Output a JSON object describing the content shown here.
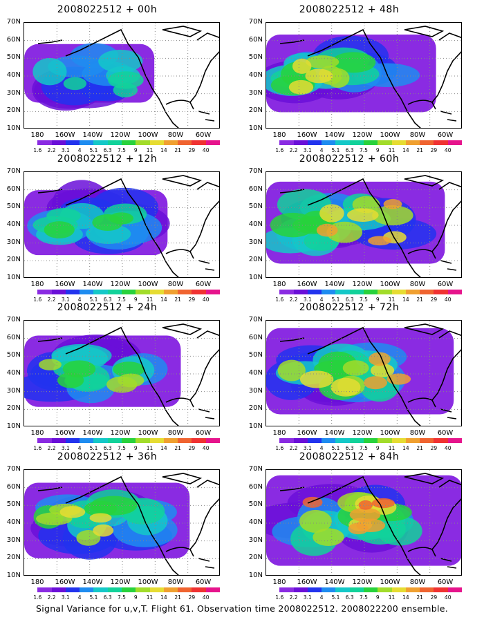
{
  "panels": [
    {
      "title": "2008022512 + 00h",
      "intensity": 0.25
    },
    {
      "title": "2008022512 + 48h",
      "intensity": 0.7
    },
    {
      "title": "2008022512 + 12h",
      "intensity": 0.4
    },
    {
      "title": "2008022512 + 60h",
      "intensity": 0.8
    },
    {
      "title": "2008022512 + 24h",
      "intensity": 0.55
    },
    {
      "title": "2008022512 + 72h",
      "intensity": 0.9
    },
    {
      "title": "2008022512 + 36h",
      "intensity": 0.65
    },
    {
      "title": "2008022512 + 84h",
      "intensity": 1.0
    }
  ],
  "lat_labels": [
    "70N",
    "60N",
    "50N",
    "40N",
    "30N",
    "20N",
    "10N"
  ],
  "lon_labels": [
    "180",
    "160W",
    "140W",
    "120W",
    "100W",
    "80W",
    "60W"
  ],
  "colorbar": {
    "labels": [
      "1.6",
      "2.2",
      "3.1",
      "4",
      "5.1",
      "6.3",
      "7.5",
      "9",
      "11",
      "14",
      "21",
      "29",
      "40"
    ],
    "colors": [
      "#ffffff",
      "#8a2be2",
      "#6a0fd8",
      "#2233ee",
      "#1e8cf0",
      "#14c8c8",
      "#12d29a",
      "#28d23c",
      "#a2dc2a",
      "#e6dc32",
      "#f0a030",
      "#f06430",
      "#f03232",
      "#e6148c"
    ]
  },
  "caption": "Signal Variance for u,v,T. Flight 61. Observation time 2008022512. 2008022200 ensemble."
}
